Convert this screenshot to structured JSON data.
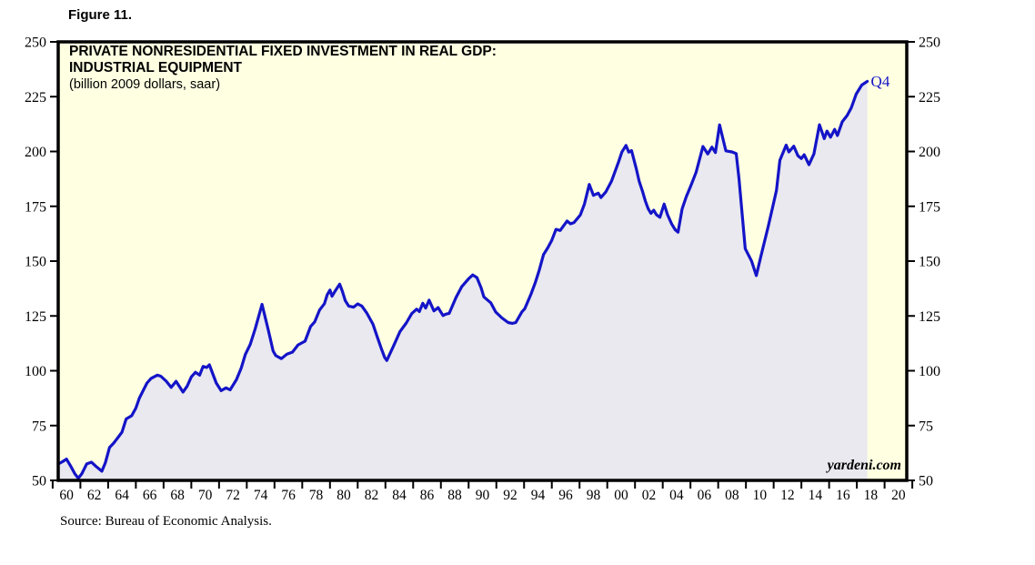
{
  "page": {
    "figure_label": "Figure 11.",
    "source_note": "Source: Bureau of Economic Analysis."
  },
  "chart": {
    "title_line1": "PRIVATE NONRESIDENTIAL FIXED INVESTMENT IN REAL GDP:",
    "title_line2": "INDUSTRIAL EQUIPMENT",
    "subtitle": "(billion 2009 dollars, saar)",
    "end_point_label": "Q4",
    "watermark": "yardeni.com",
    "colors": {
      "plot_background": "#FFFFE2",
      "area_fill": "#E9E9EF",
      "line": "#1414C8",
      "end_label": "#1414C8",
      "axis": "#000000"
    }
  },
  "chart_data": {
    "type": "area",
    "title": "PRIVATE NONRESIDENTIAL FIXED INVESTMENT IN REAL GDP: INDUSTRIAL EQUIPMENT",
    "ylabel": "billion 2009 dollars, saar",
    "xlim": [
      1959.4,
      2020.6
    ],
    "ylim": [
      50,
      250
    ],
    "grid": false,
    "yticks": [
      50,
      75,
      100,
      125,
      150,
      175,
      200,
      225,
      250
    ],
    "ytick_labels": [
      "50",
      "75",
      "100",
      "125",
      "150",
      "175",
      "200",
      "225",
      "250"
    ],
    "xtick_minor_years": [
      1959,
      1961,
      1963,
      1965,
      1967,
      1969,
      1971,
      1973,
      1975,
      1977,
      1979,
      1981,
      1983,
      1985,
      1987,
      1989,
      1991,
      1993,
      1995,
      1997,
      1999,
      2001,
      2003,
      2005,
      2007,
      2009,
      2011,
      2013,
      2015,
      2017,
      2019,
      2021
    ],
    "xlabel_years": [
      1960,
      1962,
      1964,
      1966,
      1968,
      1970,
      1972,
      1974,
      1976,
      1978,
      1980,
      1982,
      1984,
      1986,
      1988,
      1990,
      1992,
      1994,
      1996,
      1998,
      2000,
      2002,
      2004,
      2006,
      2008,
      2010,
      2012,
      2014,
      2016,
      2018,
      2020
    ],
    "xlabels": [
      "60",
      "62",
      "64",
      "66",
      "68",
      "70",
      "72",
      "74",
      "76",
      "78",
      "80",
      "82",
      "84",
      "86",
      "88",
      "90",
      "92",
      "94",
      "96",
      "98",
      "00",
      "02",
      "04",
      "06",
      "08",
      "10",
      "12",
      "14",
      "16",
      "18",
      "20"
    ],
    "last_point_label": "Q4",
    "points": [
      [
        1959.4,
        57.5
      ],
      [
        1959.7,
        58.5
      ],
      [
        1960.0,
        59.7
      ],
      [
        1960.3,
        56.5
      ],
      [
        1960.6,
        53
      ],
      [
        1960.85,
        51
      ],
      [
        1961.1,
        53
      ],
      [
        1961.45,
        57.5
      ],
      [
        1961.8,
        58.3
      ],
      [
        1962.1,
        56.5
      ],
      [
        1962.55,
        54.2
      ],
      [
        1962.8,
        58
      ],
      [
        1963.1,
        65
      ],
      [
        1963.4,
        67
      ],
      [
        1963.7,
        69.5
      ],
      [
        1964.0,
        72
      ],
      [
        1964.3,
        78
      ],
      [
        1964.7,
        79.5
      ],
      [
        1965.0,
        83
      ],
      [
        1965.25,
        87.5
      ],
      [
        1965.8,
        94.4
      ],
      [
        1966.1,
        96.5
      ],
      [
        1966.55,
        98
      ],
      [
        1966.8,
        97.5
      ],
      [
        1967.2,
        95.2
      ],
      [
        1967.55,
        92.4
      ],
      [
        1967.9,
        95.2
      ],
      [
        1968.4,
        90.3
      ],
      [
        1968.7,
        93
      ],
      [
        1969.0,
        97.2
      ],
      [
        1969.3,
        99.3
      ],
      [
        1969.6,
        98
      ],
      [
        1969.85,
        102
      ],
      [
        1970.1,
        101.5
      ],
      [
        1970.3,
        102.7
      ],
      [
        1970.8,
        94.4
      ],
      [
        1971.15,
        90.9
      ],
      [
        1971.5,
        92.2
      ],
      [
        1971.8,
        91.3
      ],
      [
        1972.25,
        95.9
      ],
      [
        1972.6,
        101.2
      ],
      [
        1972.9,
        107.5
      ],
      [
        1973.25,
        112
      ],
      [
        1973.6,
        119
      ],
      [
        1974.1,
        130.3
      ],
      [
        1974.55,
        118.6
      ],
      [
        1974.9,
        109
      ],
      [
        1975.1,
        106.9
      ],
      [
        1975.5,
        105.5
      ],
      [
        1975.9,
        107.6
      ],
      [
        1976.3,
        108.5
      ],
      [
        1976.7,
        111.8
      ],
      [
        1977.2,
        113.5
      ],
      [
        1977.6,
        120.2
      ],
      [
        1977.9,
        122.3
      ],
      [
        1978.25,
        127.7
      ],
      [
        1978.6,
        130.6
      ],
      [
        1978.8,
        134.7
      ],
      [
        1979.0,
        136.8
      ],
      [
        1979.15,
        134
      ],
      [
        1979.35,
        136.1
      ],
      [
        1979.7,
        139.5
      ],
      [
        1979.9,
        136.2
      ],
      [
        1980.1,
        132
      ],
      [
        1980.35,
        129.5
      ],
      [
        1980.7,
        129
      ],
      [
        1981.0,
        130.5
      ],
      [
        1981.3,
        129.5
      ],
      [
        1981.65,
        126.4
      ],
      [
        1982.1,
        121.2
      ],
      [
        1982.4,
        115.7
      ],
      [
        1982.7,
        110.2
      ],
      [
        1982.95,
        106
      ],
      [
        1983.1,
        104.7
      ],
      [
        1983.6,
        111.5
      ],
      [
        1984.05,
        117.9
      ],
      [
        1984.5,
        121.8
      ],
      [
        1984.9,
        126.1
      ],
      [
        1985.25,
        128.1
      ],
      [
        1985.45,
        127
      ],
      [
        1985.7,
        130.8
      ],
      [
        1985.9,
        128.6
      ],
      [
        1986.15,
        132.2
      ],
      [
        1986.5,
        127.3
      ],
      [
        1986.8,
        128.8
      ],
      [
        1987.15,
        125.2
      ],
      [
        1987.35,
        125.8
      ],
      [
        1987.6,
        126.2
      ],
      [
        1988.1,
        133.5
      ],
      [
        1988.5,
        138.3
      ],
      [
        1989.0,
        142
      ],
      [
        1989.3,
        143.7
      ],
      [
        1989.6,
        142.5
      ],
      [
        1989.9,
        137.8
      ],
      [
        1990.1,
        133.7
      ],
      [
        1990.6,
        131
      ],
      [
        1990.95,
        126.8
      ],
      [
        1991.4,
        124.1
      ],
      [
        1991.85,
        122
      ],
      [
        1992.15,
        121.6
      ],
      [
        1992.4,
        122
      ],
      [
        1992.85,
        126.9
      ],
      [
        1993.05,
        128.3
      ],
      [
        1993.5,
        135
      ],
      [
        1993.8,
        140
      ],
      [
        1994.1,
        146
      ],
      [
        1994.4,
        153
      ],
      [
        1994.7,
        156
      ],
      [
        1995.0,
        159.5
      ],
      [
        1995.3,
        164.5
      ],
      [
        1995.6,
        164
      ],
      [
        1996.1,
        168.3
      ],
      [
        1996.35,
        167
      ],
      [
        1996.6,
        167.6
      ],
      [
        1997.05,
        171
      ],
      [
        1997.35,
        176
      ],
      [
        1997.7,
        185
      ],
      [
        1998.0,
        180
      ],
      [
        1998.35,
        181
      ],
      [
        1998.55,
        179
      ],
      [
        1998.9,
        181.6
      ],
      [
        1999.3,
        186.4
      ],
      [
        1999.8,
        195
      ],
      [
        2000.05,
        199.7
      ],
      [
        2000.35,
        202.8
      ],
      [
        2000.55,
        199.7
      ],
      [
        2000.75,
        200.4
      ],
      [
        2001.1,
        192
      ],
      [
        2001.3,
        186.4
      ],
      [
        2001.55,
        181.6
      ],
      [
        2001.75,
        177.4
      ],
      [
        2001.95,
        173.9
      ],
      [
        2002.15,
        171.8
      ],
      [
        2002.35,
        173.2
      ],
      [
        2002.55,
        171.1
      ],
      [
        2002.8,
        170
      ],
      [
        2003.1,
        176
      ],
      [
        2003.35,
        171.1
      ],
      [
        2003.65,
        166.9
      ],
      [
        2003.9,
        164.3
      ],
      [
        2004.1,
        163.2
      ],
      [
        2004.4,
        173.8
      ],
      [
        2004.7,
        179.4
      ],
      [
        2005.0,
        184
      ],
      [
        2005.4,
        190.4
      ],
      [
        2005.9,
        202.3
      ],
      [
        2006.25,
        198.9
      ],
      [
        2006.55,
        202
      ],
      [
        2006.8,
        199.5
      ],
      [
        2007.1,
        212.1
      ],
      [
        2007.55,
        200.3
      ],
      [
        2008.0,
        199.8
      ],
      [
        2008.3,
        199
      ],
      [
        2008.5,
        187.8
      ],
      [
        2008.95,
        155.7
      ],
      [
        2009.4,
        150.1
      ],
      [
        2009.75,
        143.4
      ],
      [
        2010.05,
        151.5
      ],
      [
        2010.6,
        165.5
      ],
      [
        2010.9,
        173.8
      ],
      [
        2011.2,
        182.2
      ],
      [
        2011.45,
        196
      ],
      [
        2011.9,
        202.9
      ],
      [
        2012.1,
        199.8
      ],
      [
        2012.45,
        202.4
      ],
      [
        2012.75,
        198.1
      ],
      [
        2013.0,
        196.8
      ],
      [
        2013.2,
        198.5
      ],
      [
        2013.55,
        194
      ],
      [
        2013.9,
        198.9
      ],
      [
        2014.3,
        212.2
      ],
      [
        2014.65,
        205.9
      ],
      [
        2014.85,
        209.3
      ],
      [
        2015.1,
        206.5
      ],
      [
        2015.4,
        210.1
      ],
      [
        2015.6,
        207.3
      ],
      [
        2015.95,
        213.6
      ],
      [
        2016.3,
        216.4
      ],
      [
        2016.6,
        219.9
      ],
      [
        2016.95,
        226.2
      ],
      [
        2017.35,
        230.3
      ],
      [
        2017.75,
        232
      ]
    ]
  }
}
